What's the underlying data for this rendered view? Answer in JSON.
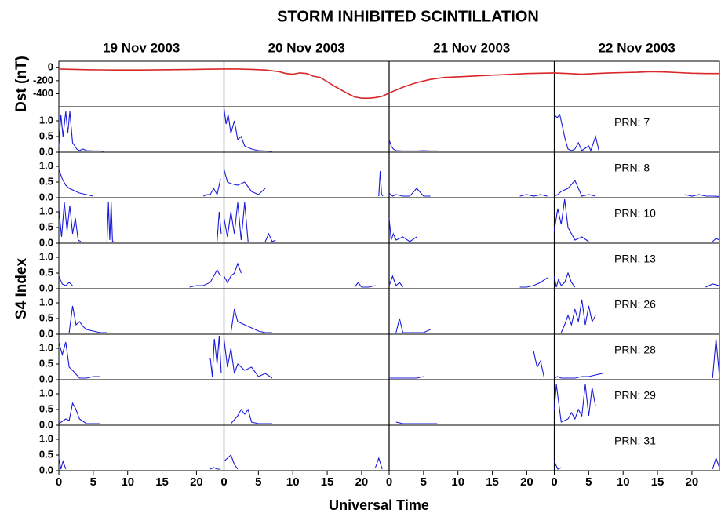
{
  "chart_data": [
    {
      "type": "line",
      "title": "STORM INHIBITED SCINTILLATION",
      "day_labels": [
        "19 Nov 2003",
        "20 Nov 2003",
        "21 Nov 2003",
        "22 Nov 2003"
      ],
      "ylabel": "Dst (nT)",
      "color": "#d8282a",
      "xlim": [
        0,
        96
      ],
      "ylim": [
        -600,
        100
      ],
      "yticks": [
        0,
        -200,
        -400
      ],
      "x": [
        0,
        4,
        8,
        12,
        16,
        20,
        24,
        26,
        28,
        30,
        32,
        33,
        34,
        35,
        36,
        37,
        38,
        40,
        42,
        43,
        44,
        45,
        46,
        47,
        48,
        50,
        52,
        54,
        56,
        58,
        60,
        62,
        64,
        66,
        68,
        70,
        72,
        74,
        76,
        78,
        80,
        82,
        84,
        86,
        88,
        90,
        92,
        94,
        96
      ],
      "values": [
        -20,
        -30,
        -35,
        -35,
        -30,
        -25,
        -20,
        -20,
        -25,
        -35,
        -60,
        -90,
        -100,
        -80,
        -90,
        -130,
        -150,
        -280,
        -400,
        -450,
        -470,
        -470,
        -460,
        -440,
        -390,
        -300,
        -230,
        -180,
        -150,
        -140,
        -130,
        -120,
        -110,
        -100,
        -90,
        -85,
        -80,
        -90,
        -100,
        -90,
        -80,
        -75,
        -70,
        -60,
        -65,
        -75,
        -85,
        -90,
        -90
      ]
    },
    {
      "type": "line",
      "ylabel": "S4 Index",
      "annotation": "PRN: 7",
      "color": "#1a1adb",
      "xlim": [
        0,
        96
      ],
      "ylim": [
        0,
        1.45
      ],
      "yticks": [
        {
          "value": 0,
          "label": "0.0"
        },
        0.5,
        {
          "value": 1,
          "label": "1.0"
        }
      ],
      "x": [
        0,
        0.3,
        0.6,
        1,
        1.3,
        1.6,
        2,
        2.3,
        2.6,
        3,
        3.5,
        4,
        5,
        6,
        6.5,
        23.9,
        24,
        24.3,
        24.6,
        25,
        25.5,
        26,
        26.5,
        27,
        28,
        29,
        30,
        31,
        38,
        48,
        48.3,
        48.6,
        49,
        50,
        51,
        52,
        53,
        54,
        55,
        60,
        72,
        72.4,
        72.8,
        73.2,
        73.6,
        74,
        74.5,
        75,
        75.5,
        76,
        77,
        77.3,
        78,
        78.5
      ],
      "values": [
        0.2,
        1.2,
        0.5,
        1.3,
        0.6,
        1.3,
        0.3,
        0.2,
        0.1,
        0.05,
        0.1,
        0.05,
        0.04,
        0.04,
        0.03,
        null,
        1.4,
        0.9,
        1.2,
        0.6,
        1.0,
        0.4,
        0.5,
        0.2,
        0.1,
        0.05,
        0.04,
        0.03,
        null,
        0.4,
        0.2,
        0.1,
        0.05,
        0.04,
        0.04,
        0.04,
        0.05,
        0.04,
        0.04,
        null,
        1.2,
        1.1,
        1.2,
        0.8,
        0.4,
        0.1,
        0.05,
        0.1,
        0.3,
        0.05,
        0.2,
        0.05,
        0.5,
        0.04
      ]
    },
    {
      "type": "line",
      "annotation": "PRN: 8",
      "color": "#1a1adb",
      "xlim": [
        0,
        96
      ],
      "ylim": [
        0,
        1.45
      ],
      "yticks": [
        {
          "value": 0,
          "label": "0.0"
        },
        0.5,
        {
          "value": 1,
          "label": "1.0"
        }
      ],
      "x": [
        0,
        0.5,
        1,
        1.5,
        2,
        3,
        4,
        5,
        6,
        21,
        21.5,
        22,
        22.5,
        23,
        23.5,
        23.8,
        24,
        24.5,
        25,
        26,
        27,
        28,
        29,
        30,
        31,
        46.5,
        46.7,
        46.9,
        47.1,
        47.8,
        48,
        48.5,
        49,
        50,
        51,
        52,
        53,
        54,
        60,
        67,
        68,
        69,
        70,
        71,
        71.8,
        72,
        72.5,
        73,
        74,
        75,
        76,
        77,
        78,
        85,
        91,
        92,
        93,
        94,
        95,
        96
      ],
      "values": [
        0.9,
        0.6,
        0.4,
        0.3,
        0.25,
        0.15,
        0.1,
        0.05,
        null,
        0.05,
        0.1,
        0.1,
        0.3,
        0.1,
        0.6,
        null,
        0.9,
        0.5,
        0.45,
        0.4,
        0.5,
        0.2,
        0.1,
        0.3,
        null,
        0.05,
        0.85,
        0.1,
        0.05,
        null,
        0.15,
        0.05,
        0.1,
        0.05,
        0.05,
        0.3,
        0.05,
        0.05,
        null,
        0.05,
        0.1,
        0.05,
        0.1,
        0.05,
        null,
        0.05,
        0.1,
        0.2,
        0.3,
        0.55,
        0.05,
        0.1,
        0.05,
        null,
        0.1,
        0.05,
        0.1,
        0.05,
        0.05,
        0.04
      ]
    },
    {
      "type": "line",
      "annotation": "PRN: 10",
      "color": "#1a1adb",
      "xlim": [
        0,
        96
      ],
      "ylim": [
        0,
        1.45
      ],
      "yticks": [
        {
          "value": 0,
          "label": "0.0"
        },
        0.5,
        {
          "value": 1,
          "label": "1.0"
        }
      ],
      "x": [
        0,
        0.4,
        0.8,
        1.2,
        1.6,
        2,
        2.4,
        2.8,
        3.2,
        5,
        7,
        7.2,
        7.4,
        7.6,
        7.8,
        8,
        15,
        23,
        23.3,
        23.6,
        23.8,
        24,
        24.5,
        25,
        25.5,
        26,
        26.5,
        27,
        27.5,
        28.5,
        30,
        30.5,
        31,
        31.5,
        40,
        48,
        48.3,
        48.6,
        49,
        50,
        51,
        52,
        60,
        72,
        72.5,
        73,
        73.5,
        74,
        74.5,
        75,
        76,
        77,
        85,
        95,
        95.5,
        96
      ],
      "values": [
        1.1,
        0.2,
        1.3,
        0.4,
        1.2,
        0.3,
        0.8,
        0.1,
        0.05,
        null,
        0.05,
        1.3,
        0.1,
        1.3,
        0.05,
        0.05,
        null,
        0.05,
        1.0,
        0.3,
        null,
        0.8,
        0.2,
        1.0,
        0.3,
        1.3,
        0.1,
        1.3,
        0.05,
        null,
        0.05,
        0.3,
        0.05,
        0.1,
        null,
        0.8,
        0.1,
        0.3,
        0.1,
        0.2,
        0.05,
        0.2,
        null,
        0.4,
        1.1,
        0.6,
        1.4,
        0.5,
        0.3,
        0.1,
        0.2,
        0.05,
        null,
        0.05,
        0.15,
        0.1
      ]
    },
    {
      "type": "line",
      "annotation": "PRN: 13",
      "color": "#1a1adb",
      "xlim": [
        0,
        96
      ],
      "ylim": [
        0,
        1.45
      ],
      "yticks": [
        {
          "value": 0,
          "label": "0.0"
        },
        0.5,
        {
          "value": 1,
          "label": "1.0"
        }
      ],
      "x": [
        0,
        0.5,
        1,
        1.5,
        2,
        10,
        19,
        20,
        21,
        22,
        23,
        23.5,
        23.8,
        24,
        24.5,
        25,
        25.5,
        26,
        26.5,
        35,
        43,
        43.5,
        44,
        45,
        46,
        47.8,
        48,
        48.5,
        49,
        49.5,
        50,
        60,
        67,
        68,
        69,
        70,
        71,
        71.8,
        72,
        72.3,
        72.6,
        73,
        73.5,
        74,
        74.5,
        75,
        85,
        94,
        95,
        96
      ],
      "values": [
        0.4,
        0.15,
        0.1,
        0.2,
        0.1,
        null,
        0.05,
        0.1,
        0.1,
        0.2,
        0.6,
        0.4,
        null,
        0.4,
        0.2,
        0.4,
        0.5,
        0.8,
        0.5,
        null,
        0.05,
        0.2,
        0.05,
        0.05,
        0.1,
        null,
        0.1,
        0.4,
        0.1,
        0.2,
        0.05,
        null,
        0.05,
        0.05,
        0.1,
        0.2,
        0.35,
        null,
        0.4,
        0.05,
        0.3,
        0.1,
        0.2,
        0.5,
        0.2,
        0.05,
        null,
        0.05,
        0.15,
        0.1
      ]
    },
    {
      "type": "line",
      "annotation": "PRN: 26",
      "color": "#1a1adb",
      "xlim": [
        0,
        96
      ],
      "ylim": [
        0,
        1.45
      ],
      "yticks": [
        {
          "value": 0,
          "label": "0.0"
        },
        0.5,
        {
          "value": 1,
          "label": "1.0"
        }
      ],
      "x": [
        1.5,
        2,
        2.5,
        3,
        3.5,
        4,
        5,
        6,
        7,
        15,
        25,
        25.5,
        26,
        27,
        28,
        29,
        30,
        31,
        40,
        49,
        49.5,
        50,
        51,
        52,
        53,
        54,
        60,
        73,
        73.5,
        74,
        74.5,
        75,
        75.5,
        76,
        76.5,
        77,
        77.5,
        78
      ],
      "values": [
        0.05,
        0.9,
        0.3,
        0.4,
        0.25,
        0.15,
        0.1,
        0.05,
        0.05,
        null,
        0.05,
        0.8,
        0.4,
        0.3,
        0.2,
        0.1,
        0.05,
        0.05,
        null,
        0.05,
        0.5,
        0.05,
        0.05,
        0.05,
        0.05,
        0.15,
        null,
        0.05,
        0.3,
        0.6,
        0.3,
        0.8,
        0.4,
        1.1,
        0.3,
        0.9,
        0.4,
        0.6
      ]
    },
    {
      "type": "line",
      "annotation": "PRN: 28",
      "color": "#1a1adb",
      "xlim": [
        0,
        96
      ],
      "ylim": [
        0,
        1.45
      ],
      "yticks": [
        {
          "value": 0,
          "label": "0.0"
        },
        0.5,
        {
          "value": 1,
          "label": "1.0"
        }
      ],
      "x": [
        0,
        0.5,
        1,
        1.5,
        2,
        3,
        4,
        5,
        6,
        15,
        22,
        22.3,
        22.6,
        23,
        23.3,
        23.6,
        23.8,
        24,
        24.5,
        25,
        25.5,
        26,
        27,
        28,
        29,
        30,
        31,
        35,
        48,
        48.5,
        49,
        50,
        51,
        52,
        53,
        60,
        69,
        69.5,
        70,
        70.5,
        71.8,
        72,
        72.5,
        73,
        74,
        75,
        76,
        77,
        78,
        79,
        85,
        95,
        95.5,
        96
      ],
      "values": [
        1.2,
        0.8,
        1.2,
        0.4,
        0.3,
        0.05,
        0.05,
        0.1,
        0.1,
        null,
        0.7,
        0.1,
        1.3,
        0.5,
        1.4,
        0.2,
        null,
        1.3,
        0.4,
        1.0,
        0.2,
        0.5,
        0.3,
        0.4,
        0.1,
        0.2,
        0.05,
        null,
        0.05,
        0.05,
        0.05,
        0.05,
        0.05,
        0.05,
        0.1,
        null,
        0.9,
        0.4,
        0.6,
        0.1,
        null,
        0.05,
        0.1,
        0.05,
        0.05,
        0.05,
        0.1,
        0.1,
        0.15,
        0.2,
        null,
        0.05,
        1.3,
        0.1
      ]
    },
    {
      "type": "line",
      "annotation": "PRN: 29",
      "color": "#1a1adb",
      "xlim": [
        0,
        96
      ],
      "ylim": [
        0,
        1.45
      ],
      "yticks": [
        {
          "value": 0,
          "label": "0.0"
        },
        0.5,
        {
          "value": 1,
          "label": "1.0"
        }
      ],
      "x": [
        0,
        1,
        1.5,
        2,
        2.5,
        3,
        4,
        5,
        6,
        15,
        25,
        26,
        26.5,
        27,
        27.5,
        28,
        29,
        30,
        31,
        40,
        49,
        50,
        51,
        52,
        53,
        54,
        55,
        60,
        72,
        72.3,
        73,
        74,
        74.5,
        75,
        75.5,
        76,
        76.5,
        77,
        77.5,
        78
      ],
      "values": [
        0.05,
        0.2,
        0.15,
        0.7,
        0.5,
        0.2,
        0.05,
        0.05,
        0.05,
        null,
        0.05,
        0.3,
        0.5,
        0.35,
        0.5,
        0.1,
        0.05,
        0.05,
        0.05,
        null,
        0.1,
        0.05,
        0.05,
        0.05,
        0.05,
        0.05,
        0.05,
        null,
        0.5,
        1.3,
        0.1,
        0.2,
        0.4,
        0.2,
        0.5,
        0.3,
        1.3,
        0.3,
        1.2,
        0.6
      ]
    },
    {
      "type": "line",
      "annotation": "PRN: 31",
      "color": "#1a1adb",
      "xlim": [
        0,
        96
      ],
      "ylim": [
        0,
        1.45
      ],
      "yticks": [
        {
          "value": 0,
          "label": "0.0"
        },
        0.5,
        {
          "value": 1,
          "label": "1.0"
        }
      ],
      "xlabel": "Universal Time",
      "xticks": [
        0,
        5,
        10,
        15,
        20,
        {
          "value": 24,
          "label": "0"
        },
        {
          "value": 29,
          "label": "5"
        },
        {
          "value": 34,
          "label": "10"
        },
        {
          "value": 39,
          "label": "15"
        },
        {
          "value": 44,
          "label": "20"
        },
        {
          "value": 48,
          "label": "0"
        },
        {
          "value": 53,
          "label": "5"
        },
        {
          "value": 58,
          "label": "10"
        },
        {
          "value": 63,
          "label": "15"
        },
        {
          "value": 68,
          "label": "20"
        },
        {
          "value": 72,
          "label": "0"
        },
        {
          "value": 77,
          "label": "5"
        },
        {
          "value": 82,
          "label": "10"
        },
        {
          "value": 87,
          "label": "15"
        },
        {
          "value": 92,
          "label": "20"
        }
      ],
      "x": [
        0,
        0.3,
        0.6,
        1,
        10,
        22,
        22.5,
        23,
        23.5,
        23.8,
        24,
        24.5,
        25,
        25.5,
        26,
        35,
        46,
        46.5,
        47,
        60,
        72,
        72.5,
        73,
        85,
        95,
        95.5,
        96
      ],
      "values": [
        0.4,
        0.05,
        0.3,
        0.05,
        null,
        0.05,
        0.1,
        0.05,
        0.05,
        null,
        0.3,
        0.4,
        0.5,
        0.2,
        0.05,
        null,
        0.1,
        0.4,
        0.05,
        null,
        0.3,
        0.05,
        0.1,
        null,
        0.05,
        0.4,
        0.1
      ]
    }
  ]
}
